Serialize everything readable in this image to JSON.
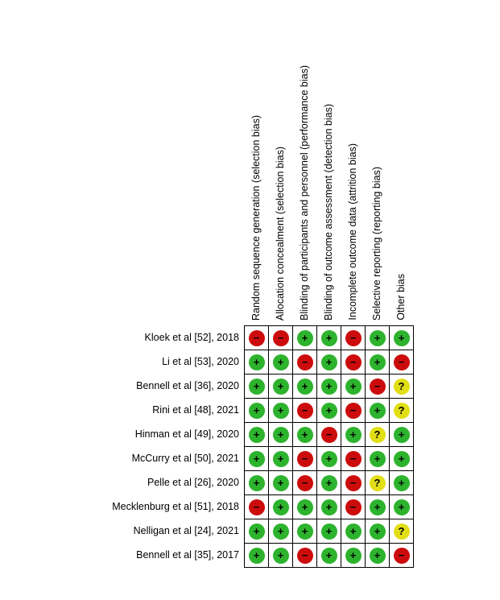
{
  "chart_data": {
    "type": "table",
    "subtype": "risk-of-bias-summary-matrix",
    "columns": [
      "Random sequence generation (selection bias)",
      "Allocation concealment (selection bias)",
      "Blinding of participants and personnel (performance bias)",
      "Blinding of outcome assessment (detection bias)",
      "Incomplete outcome data (attrition bias)",
      "Selective reporting (reporting bias)",
      "Other bias"
    ],
    "rows": [
      {
        "study": "Kloek et al [52], 2018",
        "ratings": [
          "high",
          "high",
          "low",
          "low",
          "high",
          "low",
          "low"
        ]
      },
      {
        "study": "Li et al [53], 2020",
        "ratings": [
          "low",
          "low",
          "high",
          "low",
          "high",
          "low",
          "high"
        ]
      },
      {
        "study": "Bennell et al [36], 2020",
        "ratings": [
          "low",
          "low",
          "low",
          "low",
          "low",
          "high",
          "unclear"
        ]
      },
      {
        "study": "Rini et al [48], 2021",
        "ratings": [
          "low",
          "low",
          "high",
          "low",
          "high",
          "low",
          "unclear"
        ]
      },
      {
        "study": "Hinman et al [49], 2020",
        "ratings": [
          "low",
          "low",
          "low",
          "high",
          "low",
          "unclear",
          "low"
        ]
      },
      {
        "study": "McCurry et al [50], 2021",
        "ratings": [
          "low",
          "low",
          "high",
          "low",
          "high",
          "low",
          "low"
        ]
      },
      {
        "study": "Pelle et al [26], 2020",
        "ratings": [
          "low",
          "low",
          "high",
          "low",
          "high",
          "unclear",
          "low"
        ]
      },
      {
        "study": "Mecklenburg et al [51], 2018",
        "ratings": [
          "high",
          "low",
          "low",
          "low",
          "high",
          "low",
          "low"
        ]
      },
      {
        "study": "Nelligan et al [24], 2021",
        "ratings": [
          "low",
          "low",
          "low",
          "low",
          "low",
          "low",
          "unclear"
        ]
      },
      {
        "study": "Bennell et al [35], 2017",
        "ratings": [
          "low",
          "low",
          "high",
          "low",
          "low",
          "low",
          "high"
        ]
      }
    ],
    "rating_styles": {
      "low": {
        "symbol": "+",
        "color": "#2DB32D"
      },
      "high": {
        "symbol": "−",
        "color": "#CC0C0C"
      },
      "unclear": {
        "symbol": "?",
        "color": "#E2DE16"
      }
    },
    "layout": {
      "grid_line_color": "#000000",
      "background": "#ffffff",
      "header_rotation_deg": 90,
      "legend_position": "none"
    }
  }
}
